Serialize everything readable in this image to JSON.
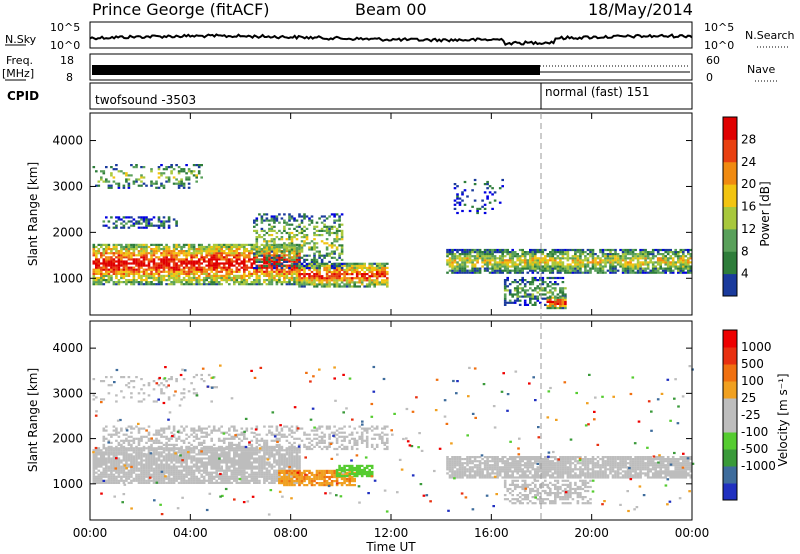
{
  "header": {
    "station": "Prince George (fitACF)",
    "beam": "Beam 00",
    "date": "18/May/2014"
  },
  "top_panels": {
    "nsky_label": "N.Sky",
    "nsky_ticks": [
      "10^5",
      "10^0"
    ],
    "nsearch_label": "N.Search",
    "freq_label_1": "Freq.",
    "freq_label_2": "[MHz]",
    "freq_ticks": [
      "18",
      "8"
    ],
    "nave_label": "Nave",
    "nave_ticks": [
      "60",
      "0"
    ],
    "cpid_label": "CPID",
    "cpid_1": "twofsound  -3503",
    "cpid_2": "normal (fast) 151"
  },
  "colors": {
    "power_scale": [
      "#0000e0",
      "#1a3a9c",
      "#2e7d3a",
      "#59a05a",
      "#a8c83c",
      "#f2c410",
      "#f08a10",
      "#e84010",
      "#e00000"
    ],
    "velocity_scale": [
      "#2030c0",
      "#3e6c9c",
      "#3a9a3a",
      "#55cc30",
      "#bdbdbd",
      "#bdbdbd",
      "#f0a020",
      "#f07010",
      "#e83010",
      "#ee0000"
    ],
    "ground": "#bdbdbd"
  },
  "chart_data": [
    {
      "type": "heatmap",
      "name": "power",
      "x": [
        "00:00",
        "04:00",
        "08:00",
        "12:00",
        "16:00",
        "20:00",
        "00:00"
      ],
      "xlim": [
        0,
        24
      ],
      "ylabel": "Slant Range [km]",
      "yticks": [
        "4000",
        "3000",
        "2000",
        "1000"
      ],
      "ylim": [
        200,
        4600
      ],
      "colorbar_label": "Power [dB]",
      "colorbar_ticks": [
        "28",
        "24",
        "20",
        "16",
        "12",
        "8",
        "4"
      ],
      "clim": [
        0,
        30
      ]
    },
    {
      "type": "heatmap",
      "name": "velocity",
      "x": [
        "00:00",
        "04:00",
        "08:00",
        "12:00",
        "16:00",
        "20:00",
        "00:00"
      ],
      "xlim": [
        0,
        24
      ],
      "xlabel": "Time UT",
      "ylabel": "Slant Range [km]",
      "yticks": [
        "4000",
        "3000",
        "2000",
        "1000"
      ],
      "ylim": [
        200,
        4600
      ],
      "colorbar_label": "Velocity [m s⁻¹]",
      "colorbar_ticks": [
        "1000",
        "500",
        "100",
        "25",
        "-25",
        "-100",
        "-500",
        "-1000"
      ],
      "clim": [
        -1000,
        1000
      ]
    }
  ],
  "mode_change_hour": 18
}
